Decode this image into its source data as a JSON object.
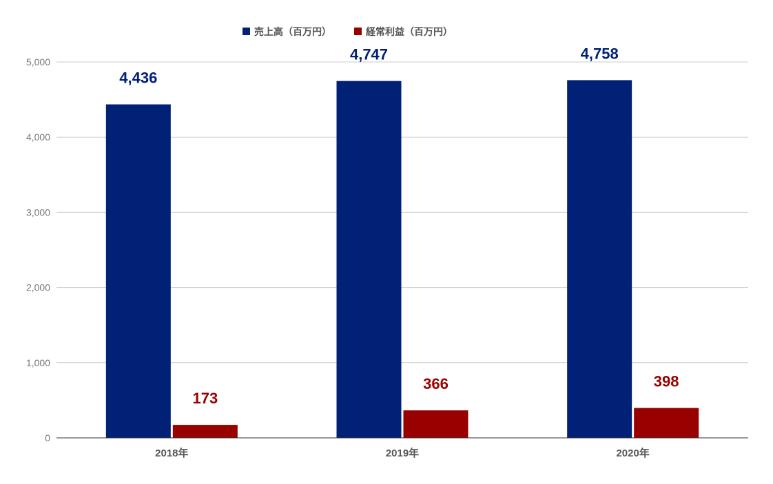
{
  "chart_data": {
    "type": "bar",
    "categories": [
      "2018年",
      "2019年",
      "2020年"
    ],
    "series": [
      {
        "name": "売上高（百万円）",
        "values": [
          4436,
          4747,
          4758
        ],
        "labels": [
          "4,436",
          "4,747",
          "4,758"
        ],
        "color": "#002176"
      },
      {
        "name": "経常利益（百万円）",
        "values": [
          173,
          366,
          398
        ],
        "labels": [
          "173",
          "366",
          "398"
        ],
        "color": "#990000"
      }
    ],
    "ylim": [
      0,
      5000
    ],
    "yticks": [
      0,
      1000,
      2000,
      3000,
      4000,
      5000
    ],
    "ytick_labels": [
      "0",
      "1,000",
      "2,000",
      "3,000",
      "4,000",
      "5,000"
    ],
    "title": "",
    "xlabel": "",
    "ylabel": "",
    "grid": true,
    "legend_position": "top"
  }
}
